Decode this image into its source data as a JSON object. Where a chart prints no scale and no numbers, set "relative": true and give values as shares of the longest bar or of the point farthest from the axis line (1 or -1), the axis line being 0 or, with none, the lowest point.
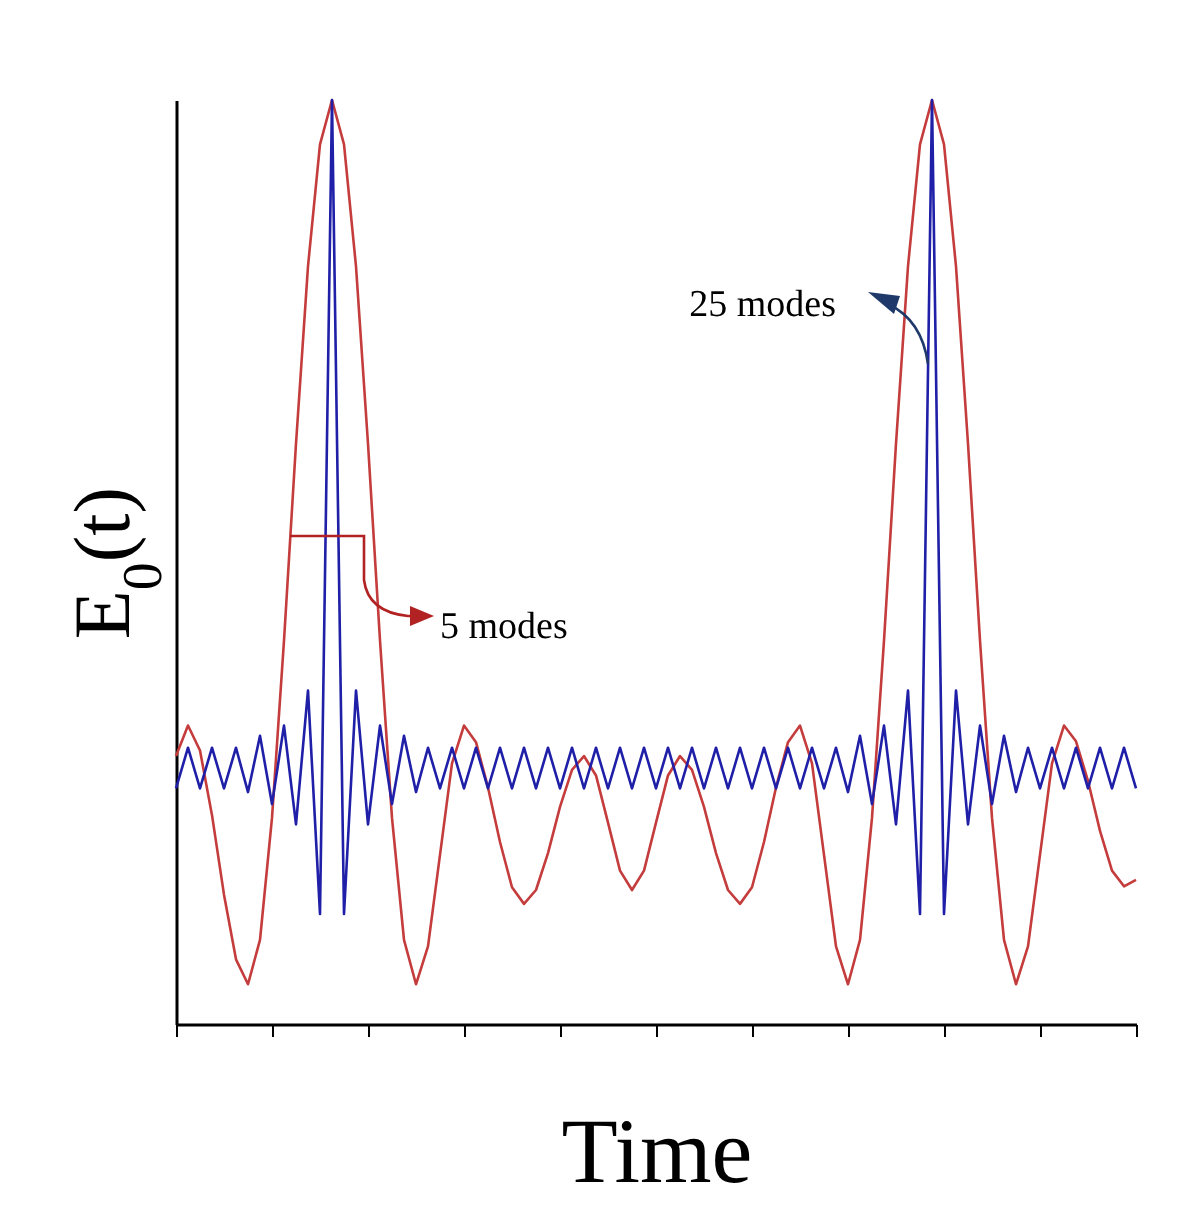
{
  "chart_data": {
    "type": "line",
    "relative": true,
    "xlabel": "Time",
    "ylabel": "E$_{0}$(t)",
    "tick_labels": false,
    "categories": [
      null,
      null,
      null,
      null,
      null,
      null,
      null,
      null,
      null,
      null,
      null,
      null,
      null,
      null,
      null,
      null,
      null,
      null,
      null,
      null,
      null,
      null,
      null,
      null,
      null,
      null,
      null,
      null,
      null,
      null,
      null,
      null,
      null,
      null,
      null,
      null,
      null,
      null,
      null,
      null,
      null,
      null,
      null,
      null,
      null,
      null,
      null,
      null,
      null,
      null,
      null,
      null,
      null,
      null,
      null,
      null,
      null,
      null,
      null,
      null,
      null,
      null,
      null,
      null,
      null,
      null,
      null,
      null,
      null,
      null,
      null,
      null,
      null,
      null,
      null,
      null,
      null,
      null,
      null,
      null,
      null
    ],
    "series": [
      {
        "color": "#c43c3c",
        "values": [
          0.29,
          0.323,
          0.296,
          0.226,
          0.14,
          0.07,
          0.043,
          0.091,
          0.223,
          0.415,
          0.628,
          0.82,
          0.952,
          1,
          0.952,
          0.82,
          0.628,
          0.415,
          0.223,
          0.091,
          0.043,
          0.084,
          0.183,
          0.282,
          0.323,
          0.305,
          0.256,
          0.197,
          0.148,
          0.13,
          0.145,
          0.185,
          0.235,
          0.275,
          0.29,
          0.269,
          0.218,
          0.166,
          0.145,
          0.166,
          0.218,
          0.269,
          0.29,
          0.275,
          0.235,
          0.185,
          0.145,
          0.13,
          0.148,
          0.197,
          0.256,
          0.305,
          0.323,
          0.282,
          0.183,
          0.084,
          0.043,
          0.091,
          0.223,
          0.415,
          0.628,
          0.82,
          0.952,
          1,
          0.952,
          0.82,
          0.628,
          0.415,
          0.223,
          0.091,
          0.043,
          0.084,
          0.183,
          0.282,
          0.323,
          0.306,
          0.263,
          0.209,
          0.166,
          0.149,
          0.156
        ]
      },
      {
        "color": "#1f1fa8",
        "values": [
          0.255,
          0.299,
          0.255,
          0.299,
          0.255,
          0.299,
          0.251,
          0.312,
          0.238,
          0.323,
          0.216,
          0.361,
          0.119,
          1,
          0.119,
          0.361,
          0.216,
          0.323,
          0.238,
          0.312,
          0.251,
          0.299,
          0.255,
          0.299,
          0.255,
          0.299,
          0.255,
          0.299,
          0.255,
          0.299,
          0.255,
          0.299,
          0.255,
          0.299,
          0.255,
          0.299,
          0.255,
          0.299,
          0.255,
          0.299,
          0.255,
          0.299,
          0.255,
          0.299,
          0.255,
          0.299,
          0.255,
          0.299,
          0.255,
          0.299,
          0.255,
          0.299,
          0.255,
          0.299,
          0.255,
          0.299,
          0.251,
          0.312,
          0.238,
          0.323,
          0.216,
          0.361,
          0.119,
          1,
          0.119,
          0.361,
          0.216,
          0.323,
          0.238,
          0.312,
          0.251,
          0.299,
          0.255,
          0.299,
          0.255,
          0.299,
          0.255,
          0.299,
          0.255,
          0.299,
          0.255
        ]
      }
    ],
    "annotations": [
      "5 modes",
      "25 modes"
    ]
  }
}
